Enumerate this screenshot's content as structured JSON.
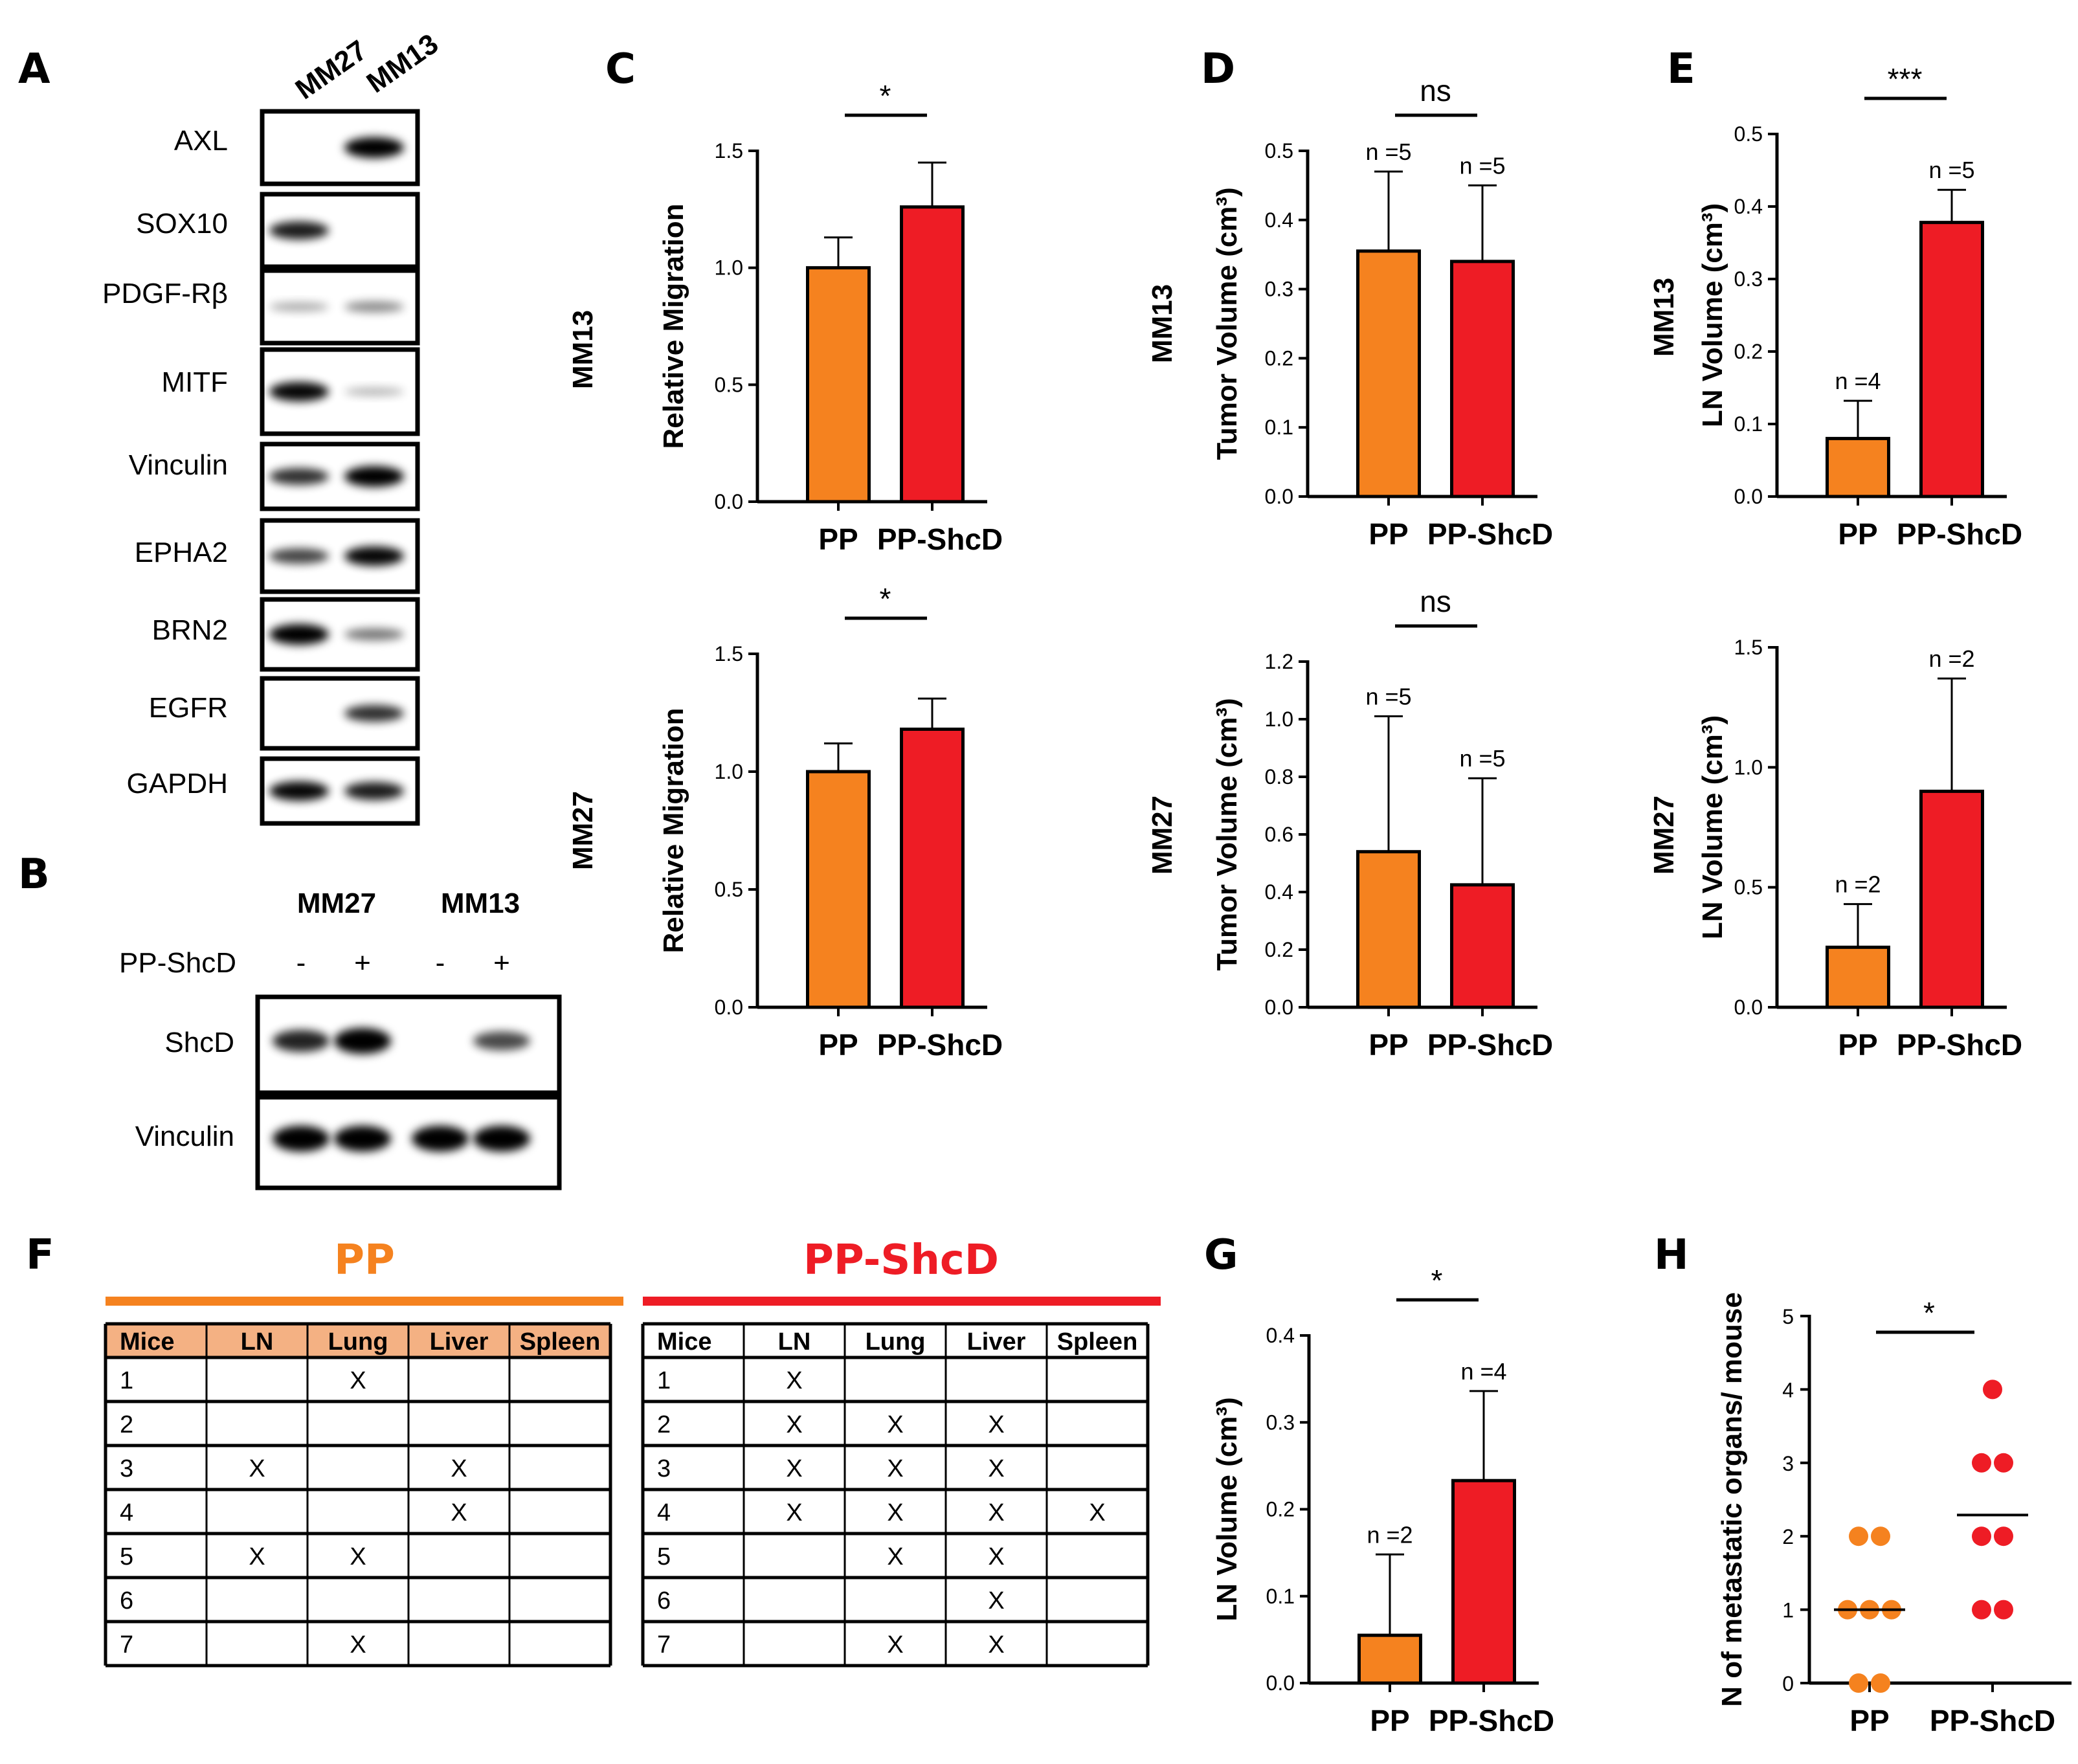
{
  "panel_letters": {
    "A": "A",
    "B": "B",
    "C": "C",
    "D": "D",
    "E": "E",
    "F": "F",
    "G": "G",
    "H": "H"
  },
  "colors": {
    "pp": "#f5821f",
    "ppshcd": "#ee1c25",
    "pp_header": "#f4b183"
  },
  "blot_a": {
    "lanes": [
      "MM27",
      "MM13"
    ],
    "rows": [
      {
        "label": "AXL",
        "mm27": 0.0,
        "mm13": 1.0
      },
      {
        "label": "SOX10",
        "mm27": 0.8,
        "mm13": 0.0
      },
      {
        "label": "PDGF-Rβ",
        "mm27": 0.1,
        "mm13": 0.25
      },
      {
        "label": "MITF",
        "mm27": 0.9,
        "mm13": 0.05
      },
      {
        "label": "Vinculin",
        "mm27": 0.7,
        "mm13": 1.0
      },
      {
        "label": "EPHA2",
        "mm27": 0.6,
        "mm13": 0.9
      },
      {
        "label": "BRN2",
        "mm27": 1.0,
        "mm13": 0.35
      },
      {
        "label": "EGFR",
        "mm27": 0.0,
        "mm13": 0.7
      },
      {
        "label": "GAPDH",
        "mm27": 0.9,
        "mm13": 0.8
      }
    ]
  },
  "blot_b": {
    "groups": [
      "MM27",
      "MM13"
    ],
    "treatment_label": "PP-ShcD",
    "signs": [
      "-",
      "+",
      "-",
      "+"
    ],
    "rows": [
      {
        "label": "ShcD",
        "intensities": [
          0.75,
          1.0,
          0.0,
          0.55
        ]
      },
      {
        "label": "Vinculin",
        "intensities": [
          1.0,
          1.0,
          1.0,
          1.0
        ]
      }
    ]
  },
  "chart_data": [
    {
      "id": "C-top",
      "type": "bar",
      "side_label": "MM13",
      "ylabel": "Relative Migration",
      "categories": [
        "PP",
        "PP-ShcD"
      ],
      "values": [
        1.0,
        1.26
      ],
      "errors": [
        0.13,
        0.19
      ],
      "ylim": [
        0,
        1.5
      ],
      "ticks": [
        "0.0",
        "0.5",
        "1.0",
        "1.5"
      ],
      "tick_values": [
        0,
        0.5,
        1.0,
        1.5
      ],
      "significance": "*",
      "n_labels": [
        "",
        ""
      ]
    },
    {
      "id": "C-bottom",
      "type": "bar",
      "side_label": "MM27",
      "ylabel": "Relative Migration",
      "categories": [
        "PP",
        "PP-ShcD"
      ],
      "values": [
        1.0,
        1.18
      ],
      "errors": [
        0.12,
        0.13
      ],
      "ylim": [
        0,
        1.5
      ],
      "ticks": [
        "0.0",
        "0.5",
        "1.0",
        "1.5"
      ],
      "tick_values": [
        0,
        0.5,
        1.0,
        1.5
      ],
      "significance": "*",
      "n_labels": [
        "",
        ""
      ]
    },
    {
      "id": "D-top",
      "type": "bar",
      "side_label": "MM13",
      "ylabel": "Tumor Volume (cm³)",
      "categories": [
        "PP",
        "PP-ShcD"
      ],
      "values": [
        0.355,
        0.34
      ],
      "errors": [
        0.115,
        0.11
      ],
      "ylim": [
        0,
        0.5
      ],
      "ticks": [
        "0.0",
        "0.1",
        "0.2",
        "0.3",
        "0.4",
        "0.5"
      ],
      "tick_values": [
        0,
        0.1,
        0.2,
        0.3,
        0.4,
        0.5
      ],
      "significance": "ns",
      "n_labels": [
        "n =5",
        "n =5"
      ]
    },
    {
      "id": "D-bottom",
      "type": "bar",
      "side_label": "MM27",
      "ylabel": "Tumor Volume (cm³)",
      "categories": [
        "PP",
        "PP-ShcD"
      ],
      "values": [
        0.54,
        0.425
      ],
      "errors": [
        0.47,
        0.37
      ],
      "ylim": [
        0,
        1.2
      ],
      "ticks": [
        "0.0",
        "0.2",
        "0.4",
        "0.6",
        "0.8",
        "1.0",
        "1.2"
      ],
      "tick_values": [
        0,
        0.2,
        0.4,
        0.6,
        0.8,
        1.0,
        1.2
      ],
      "significance": "ns",
      "n_labels": [
        "n =5",
        "n =5"
      ]
    },
    {
      "id": "E-top",
      "type": "bar",
      "side_label": "MM13",
      "ylabel": "LN Volume (cm³)",
      "categories": [
        "PP",
        "PP-ShcD"
      ],
      "values": [
        0.08,
        0.378
      ],
      "errors": [
        0.052,
        0.045
      ],
      "ylim": [
        0,
        0.5
      ],
      "ticks": [
        "0.0",
        "0.1",
        "0.2",
        "0.3",
        "0.4",
        "0.5"
      ],
      "tick_values": [
        0,
        0.1,
        0.2,
        0.3,
        0.4,
        0.5
      ],
      "significance": "***",
      "n_labels": [
        "n =4",
        "n =5"
      ]
    },
    {
      "id": "E-bottom",
      "type": "bar",
      "side_label": "MM27",
      "ylabel": "LN Volume (cm³)",
      "categories": [
        "PP",
        "PP-ShcD"
      ],
      "values": [
        0.25,
        0.9
      ],
      "errors": [
        0.18,
        0.47
      ],
      "ylim": [
        0,
        1.5
      ],
      "ticks": [
        "0.0",
        "0.5",
        "1.0",
        "1.5"
      ],
      "tick_values": [
        0,
        0.5,
        1.0,
        1.5
      ],
      "significance": "",
      "n_labels": [
        "n =2",
        "n =2"
      ]
    },
    {
      "id": "G",
      "type": "bar",
      "side_label": "",
      "ylabel": "LN Volume (cm³)",
      "categories": [
        "PP",
        "PP-ShcD"
      ],
      "values": [
        0.055,
        0.233
      ],
      "errors": [
        0.093,
        0.103
      ],
      "ylim": [
        0,
        0.4
      ],
      "ticks": [
        "0.0",
        "0.1",
        "0.2",
        "0.3",
        "0.4"
      ],
      "tick_values": [
        0,
        0.1,
        0.2,
        0.3,
        0.4
      ],
      "significance": "*",
      "n_labels": [
        "n =2",
        "n =4"
      ]
    },
    {
      "id": "H",
      "type": "scatter",
      "ylabel": "N of metastatic organs/ mouse",
      "categories": [
        "PP",
        "PP-ShcD"
      ],
      "points": [
        [
          0,
          0,
          1,
          1,
          1,
          2,
          2
        ],
        [
          1,
          1,
          2,
          2,
          3,
          3,
          4
        ]
      ],
      "means": [
        1.0,
        2.29
      ],
      "ylim": [
        0,
        5
      ],
      "ticks": [
        "0",
        "1",
        "2",
        "3",
        "4",
        "5"
      ],
      "tick_values": [
        0,
        1,
        2,
        3,
        4,
        5
      ],
      "significance": "*"
    }
  ],
  "table_f": {
    "pp_title": "PP",
    "shcd_title": "PP-ShcD",
    "headers": [
      "Mice",
      "LN",
      "Lung",
      "Liver",
      "Spleen"
    ],
    "pp_rows": [
      [
        "1",
        "",
        "X",
        "",
        ""
      ],
      [
        "2",
        "",
        "",
        "",
        ""
      ],
      [
        "3",
        "X",
        "",
        "X",
        ""
      ],
      [
        "4",
        "",
        "",
        "X",
        ""
      ],
      [
        "5",
        "X",
        "X",
        "",
        ""
      ],
      [
        "6",
        "",
        "",
        "",
        ""
      ],
      [
        "7",
        "",
        "X",
        "",
        ""
      ]
    ],
    "shcd_rows": [
      [
        "1",
        "X",
        "",
        "",
        ""
      ],
      [
        "2",
        "X",
        "X",
        "X",
        ""
      ],
      [
        "3",
        "X",
        "X",
        "X",
        ""
      ],
      [
        "4",
        "X",
        "X",
        "X",
        "X"
      ],
      [
        "5",
        "",
        "X",
        "X",
        ""
      ],
      [
        "6",
        "",
        "",
        "X",
        ""
      ],
      [
        "7",
        "",
        "X",
        "X",
        ""
      ]
    ]
  }
}
